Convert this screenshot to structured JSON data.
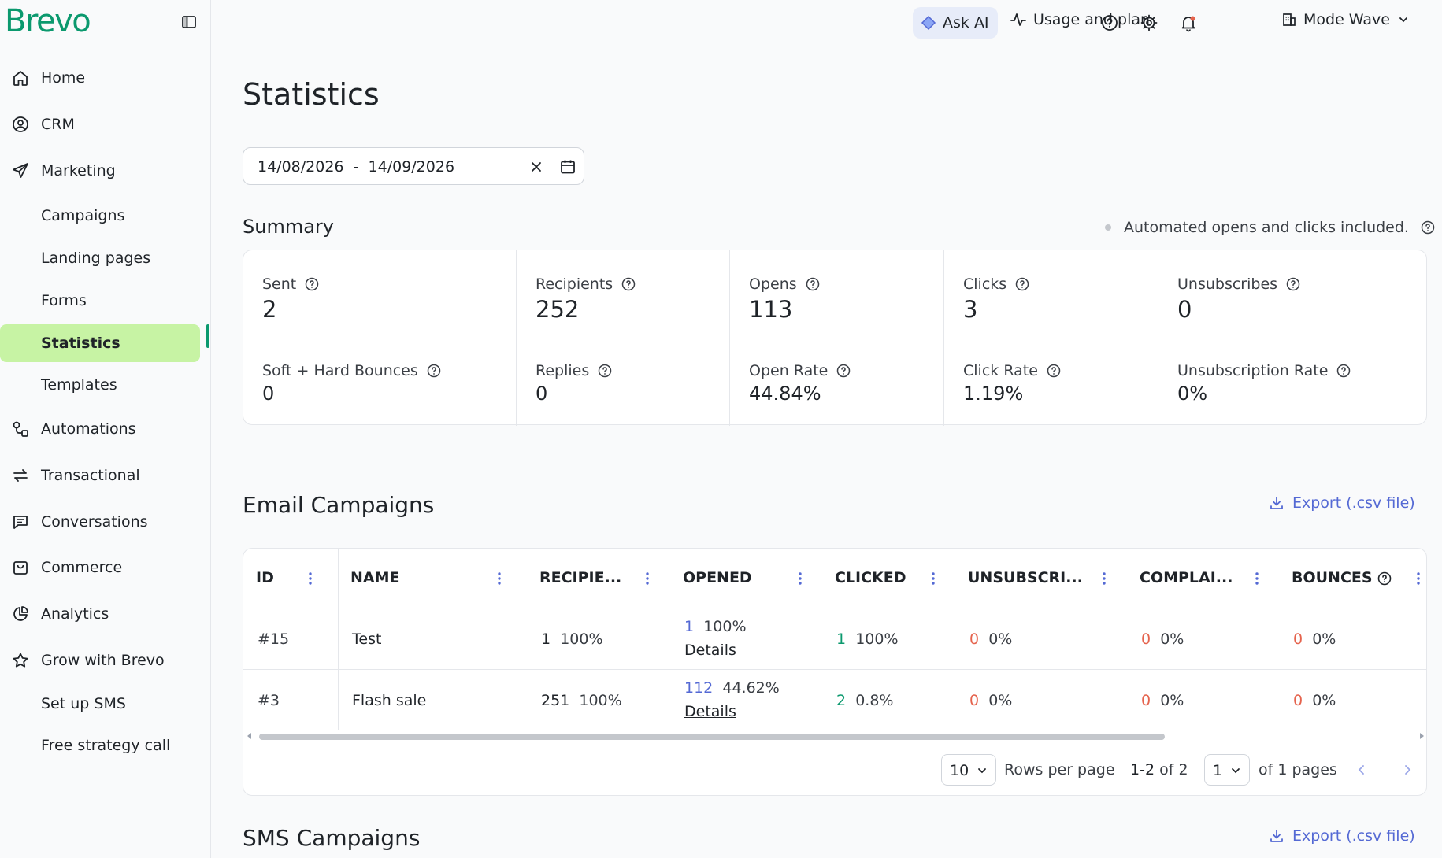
{
  "brand": {
    "logo": "Brevo",
    "accent": "#0b996e",
    "active_bg": "#c7f3a4"
  },
  "sidebar": {
    "items": [
      {
        "label": "Home",
        "icon": "home-icon"
      },
      {
        "label": "CRM",
        "icon": "contact-circle-icon"
      },
      {
        "label": "Marketing",
        "icon": "paper-plane-icon"
      },
      {
        "label": "Campaigns"
      },
      {
        "label": "Landing pages"
      },
      {
        "label": "Forms"
      },
      {
        "label": "Statistics",
        "active": true
      },
      {
        "label": "Templates"
      },
      {
        "label": "Automations",
        "icon": "automation-icon"
      },
      {
        "label": "Transactional",
        "icon": "arrows-exchange-icon"
      },
      {
        "label": "Conversations",
        "icon": "chat-icon"
      },
      {
        "label": "Commerce",
        "icon": "shopping-bag-icon"
      },
      {
        "label": "Analytics",
        "icon": "pie-chart-icon"
      },
      {
        "label": "Grow with Brevo",
        "icon": "star-icon"
      },
      {
        "label": "Set up SMS"
      },
      {
        "label": "Free strategy call"
      }
    ]
  },
  "topbar": {
    "ask_ai": "Ask AI",
    "usage": "Usage and plan",
    "account": "Mode Wave"
  },
  "page": {
    "title": "Statistics",
    "date_range": "14/08/2026  -  14/09/2026"
  },
  "summary": {
    "title": "Summary",
    "note": "Automated opens and clicks included.",
    "metrics": [
      {
        "label": "Sent",
        "value": "2",
        "sub_label": "Soft + Hard Bounces",
        "sub_value": "0"
      },
      {
        "label": "Recipients",
        "value": "252",
        "sub_label": "Replies",
        "sub_value": "0"
      },
      {
        "label": "Opens",
        "value": "113",
        "sub_label": "Open Rate",
        "sub_value": "44.84%"
      },
      {
        "label": "Clicks",
        "value": "3",
        "sub_label": "Click Rate",
        "sub_value": "1.19%"
      },
      {
        "label": "Unsubscribes",
        "value": "0",
        "sub_label": "Unsubscription Rate",
        "sub_value": "0%"
      }
    ]
  },
  "email_campaigns": {
    "title": "Email Campaigns",
    "export": "Export (.csv file)",
    "columns": [
      "ID",
      "NAME",
      "RECIPIE...",
      "OPENED",
      "CLICKED",
      "UNSUBSCRI...",
      "COMPLAI...",
      "BOUNCES"
    ],
    "rows": [
      {
        "id": "#15",
        "name": "Test",
        "recipients": "1",
        "recipients_pct": "100%",
        "opened": "1",
        "opened_pct": "100%",
        "details": "Details",
        "clicked": "1",
        "clicked_pct": "100%",
        "unsub": "0",
        "unsub_pct": "0%",
        "complaints": "0",
        "complaints_pct": "0%",
        "bounces": "0",
        "bounces_pct": "0%"
      },
      {
        "id": "#3",
        "name": "Flash sale",
        "recipients": "251",
        "recipients_pct": "100%",
        "opened": "112",
        "opened_pct": "44.62%",
        "details": "Details",
        "clicked": "2",
        "clicked_pct": "0.8%",
        "unsub": "0",
        "unsub_pct": "0%",
        "complaints": "0",
        "complaints_pct": "0%",
        "bounces": "0",
        "bounces_pct": "0%"
      }
    ],
    "pagination": {
      "rows_per_page_value": "10",
      "rows_per_page_label": "Rows per page",
      "range": "1-2",
      "range_of": "of 2",
      "page_value": "1",
      "pages_label": "of 1 pages"
    }
  },
  "sms_campaigns": {
    "title": "SMS Campaigns",
    "export": "Export (.csv file)"
  }
}
